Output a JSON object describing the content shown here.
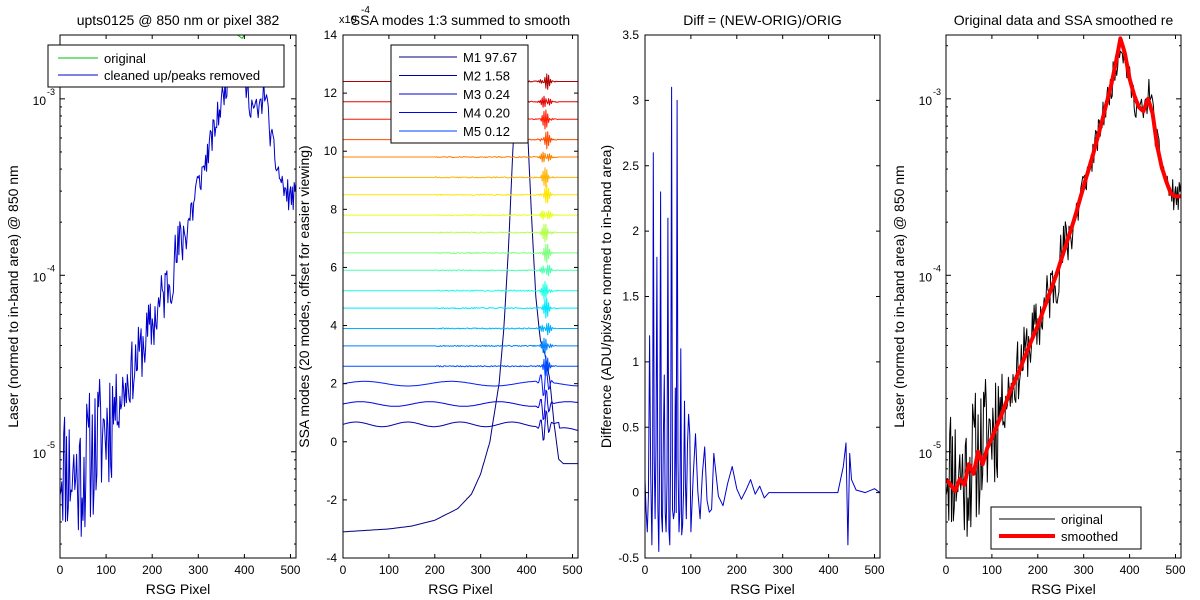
{
  "chart_data": [
    {
      "type": "line",
      "title": "upts0125 @ 850 nm or pixel 382",
      "xlabel": "RSG Pixel",
      "ylabel": "Laser (normed to in-band area) @ 850 nm",
      "xlim": [
        0,
        512
      ],
      "ylim": [
        2.5e-06,
        0.0023
      ],
      "yscale": "log",
      "xticks": [
        0,
        100,
        200,
        300,
        400,
        500
      ],
      "yticks": [
        1e-05,
        0.0001,
        0.001
      ],
      "ytick_labels": [
        "10",
        "10",
        "10"
      ],
      "ytick_exponents": [
        "-5",
        "-4",
        "-3"
      ],
      "legend_location": "top-left",
      "colors": {
        "original": "#00c000",
        "cleaned": "#0000cc"
      },
      "series": [
        {
          "name": "original",
          "x": [
            365,
            375,
            385,
            395,
            400
          ],
          "y": [
            0.0023,
            0.0023,
            0.0023,
            0.0022,
            0.0023
          ]
        },
        {
          "name": "cleaned up/peaks removed",
          "x": [
            0,
            20,
            40,
            60,
            80,
            100,
            120,
            140,
            160,
            180,
            200,
            220,
            240,
            260,
            280,
            300,
            320,
            340,
            360,
            370,
            380,
            390,
            400,
            410,
            420,
            430,
            440,
            445,
            450,
            460,
            470,
            480,
            490,
            500,
            510
          ],
          "y": [
            9e-06,
            8e-06,
            7e-06,
            9e-06,
            1.1e-05,
            1.4e-05,
            1.8e-05,
            2.3e-05,
            3e-05,
            4e-05,
            5.2e-05,
            7.2e-05,
            0.0001,
            0.000145,
            0.00021,
            0.00032,
            0.00048,
            0.00075,
            0.0012,
            0.00155,
            0.0019,
            0.0017,
            0.00125,
            0.001,
            0.00088,
            0.00082,
            0.001,
            0.0012,
            0.00085,
            0.00055,
            0.00042,
            0.00034,
            0.00029,
            0.00028,
            0.00028
          ]
        }
      ]
    },
    {
      "type": "line",
      "title": "SSA modes 1:3 summed to smooth",
      "xlabel": "RSG Pixel",
      "ylabel": "SSA modes (20 modes, offset for easier viewing)",
      "xlim": [
        0,
        512
      ],
      "ylim": [
        -4,
        14
      ],
      "y_multiplier": "x10",
      "y_multiplier_exponent": "-4",
      "xticks": [
        0,
        100,
        200,
        300,
        400,
        500
      ],
      "yticks": [
        -4,
        -2,
        0,
        2,
        4,
        6,
        8,
        10,
        12,
        14
      ],
      "legend_location": "top-right",
      "legend": [
        "M1 97.67",
        "M2 1.58",
        "M3 0.24",
        "M4 0.20",
        "M5 0.12"
      ],
      "legend_colors": [
        "#00007f",
        "#0000a8",
        "#0000d0",
        "#0000f4",
        "#0040ff"
      ],
      "mode_offsets": [
        -3.1,
        0.6,
        1.3,
        2.0,
        2.6,
        3.3,
        3.9,
        4.6,
        5.2,
        5.9,
        6.5,
        7.2,
        7.8,
        8.5,
        9.1,
        9.8,
        10.4,
        11.1,
        11.7,
        12.4
      ],
      "mode_colors": [
        "#00007f",
        "#0000b3",
        "#0000e6",
        "#001aff",
        "#004dff",
        "#0080ff",
        "#00b3ff",
        "#00e6ff",
        "#1affe6",
        "#4dffb3",
        "#80ff80",
        "#b3ff4d",
        "#e6ff1a",
        "#ffe600",
        "#ffb300",
        "#ff8000",
        "#ff4d00",
        "#ff1a00",
        "#e60000",
        "#b30000"
      ],
      "series": [
        {
          "name": "M1",
          "x": [
            0,
            50,
            100,
            150,
            200,
            250,
            280,
            300,
            320,
            340,
            350,
            360,
            370,
            380,
            390,
            400,
            410,
            420,
            430,
            440,
            450,
            460,
            470,
            480,
            490,
            500,
            512
          ],
          "y": [
            -3.1,
            -3.05,
            -3.0,
            -2.9,
            -2.7,
            -2.3,
            -1.8,
            -1.1,
            0.0,
            2.0,
            3.8,
            6.5,
            10.0,
            12.8,
            13.1,
            11.5,
            8.0,
            5.0,
            3.5,
            3.0,
            2.2,
            0.6,
            -0.6,
            -0.75,
            -0.75,
            -0.75,
            -0.75
          ]
        }
      ]
    },
    {
      "type": "line",
      "title": "Diff = (NEW-ORIG)/ORIG",
      "xlabel": "RSG Pixel",
      "ylabel": "Difference (ADU/pix/sec normed to in-band area)",
      "xlim": [
        0,
        512
      ],
      "ylim": [
        -0.5,
        3.5
      ],
      "xticks": [
        0,
        100,
        200,
        300,
        400,
        500
      ],
      "yticks": [
        -0.5,
        0,
        0.5,
        1,
        1.5,
        2,
        2.5,
        3,
        3.5
      ],
      "series": [
        {
          "name": "diff",
          "x": [
            0,
            5,
            10,
            15,
            18,
            22,
            26,
            30,
            34,
            38,
            42,
            46,
            50,
            54,
            58,
            62,
            66,
            70,
            74,
            78,
            82,
            86,
            90,
            95,
            100,
            110,
            120,
            130,
            140,
            150,
            170,
            190,
            210,
            230,
            250,
            270,
            300,
            340,
            380,
            420,
            432,
            438,
            442,
            446,
            450,
            460,
            480,
            500,
            512
          ],
          "y": [
            0.1,
            -0.3,
            1.2,
            -0.4,
            2.6,
            -0.2,
            1.8,
            -0.45,
            2.3,
            -0.3,
            0.9,
            -0.3,
            2.1,
            -0.4,
            3.1,
            -0.2,
            0.8,
            3.0,
            -0.3,
            1.1,
            -0.25,
            0.7,
            -0.2,
            0.6,
            -0.3,
            0.45,
            -0.2,
            0.35,
            -0.15,
            0.3,
            -0.1,
            0.2,
            -0.05,
            0.1,
            0.05,
            0.0,
            0.0,
            0.0,
            0.0,
            0.0,
            0.2,
            0.38,
            -0.4,
            0.3,
            0.1,
            0.02,
            0.0,
            0.03,
            0.0
          ]
        }
      ]
    },
    {
      "type": "line",
      "title": "Original data and SSA smoothed re",
      "xlabel": "RSG Pixel",
      "ylabel": "Laser (normed to in-band area) @ 850 nm",
      "xlim": [
        0,
        512
      ],
      "ylim": [
        2.5e-06,
        0.0023
      ],
      "yscale": "log",
      "xticks": [
        0,
        100,
        200,
        300,
        400,
        500
      ],
      "yticks": [
        1e-05,
        0.0001,
        0.001
      ],
      "ytick_labels": [
        "10",
        "10",
        "10"
      ],
      "ytick_exponents": [
        "-5",
        "-4",
        "-3"
      ],
      "legend_location": "bottom-right",
      "colors": {
        "original": "#000000",
        "smoothed": "#ff0000"
      },
      "series": [
        {
          "name": "original",
          "x": [
            0,
            20,
            40,
            60,
            80,
            100,
            120,
            140,
            160,
            180,
            200,
            220,
            240,
            260,
            280,
            300,
            320,
            340,
            360,
            370,
            380,
            390,
            400,
            410,
            420,
            430,
            440,
            445,
            450,
            460,
            470,
            480,
            490,
            500,
            510
          ],
          "y": [
            9e-06,
            8e-06,
            7e-06,
            9e-06,
            1.1e-05,
            1.4e-05,
            1.8e-05,
            2.3e-05,
            3e-05,
            4e-05,
            5.2e-05,
            7.2e-05,
            0.0001,
            0.000145,
            0.00021,
            0.00032,
            0.00048,
            0.00075,
            0.0012,
            0.00155,
            0.0021,
            0.0017,
            0.00125,
            0.001,
            0.00088,
            0.00082,
            0.001,
            0.0012,
            0.00085,
            0.00055,
            0.00042,
            0.00034,
            0.00029,
            0.00028,
            0.00028
          ]
        },
        {
          "name": "smoothed",
          "x": [
            0,
            10,
            20,
            30,
            40,
            50,
            60,
            70,
            80,
            90,
            100,
            120,
            140,
            160,
            180,
            200,
            220,
            240,
            260,
            280,
            300,
            320,
            340,
            360,
            370,
            380,
            390,
            400,
            410,
            420,
            430,
            440,
            450,
            460,
            470,
            480,
            490,
            500,
            512
          ],
          "y": [
            7e-06,
            6.5e-06,
            6e-06,
            7e-06,
            6.5e-06,
            8.5e-06,
            7.5e-06,
            1e-05,
            8.5e-06,
            1.05e-05,
            1.2e-05,
            1.6e-05,
            2.2e-05,
            2.9e-05,
            3.9e-05,
            5.2e-05,
            7.2e-05,
            0.0001,
            0.000145,
            0.00021,
            0.00032,
            0.00048,
            0.00075,
            0.0012,
            0.0016,
            0.0022,
            0.0018,
            0.0013,
            0.00105,
            0.0009,
            0.00085,
            0.001,
            0.00083,
            0.00054,
            0.00041,
            0.00034,
            0.00029,
            0.00028,
            0.00028
          ]
        }
      ]
    }
  ]
}
